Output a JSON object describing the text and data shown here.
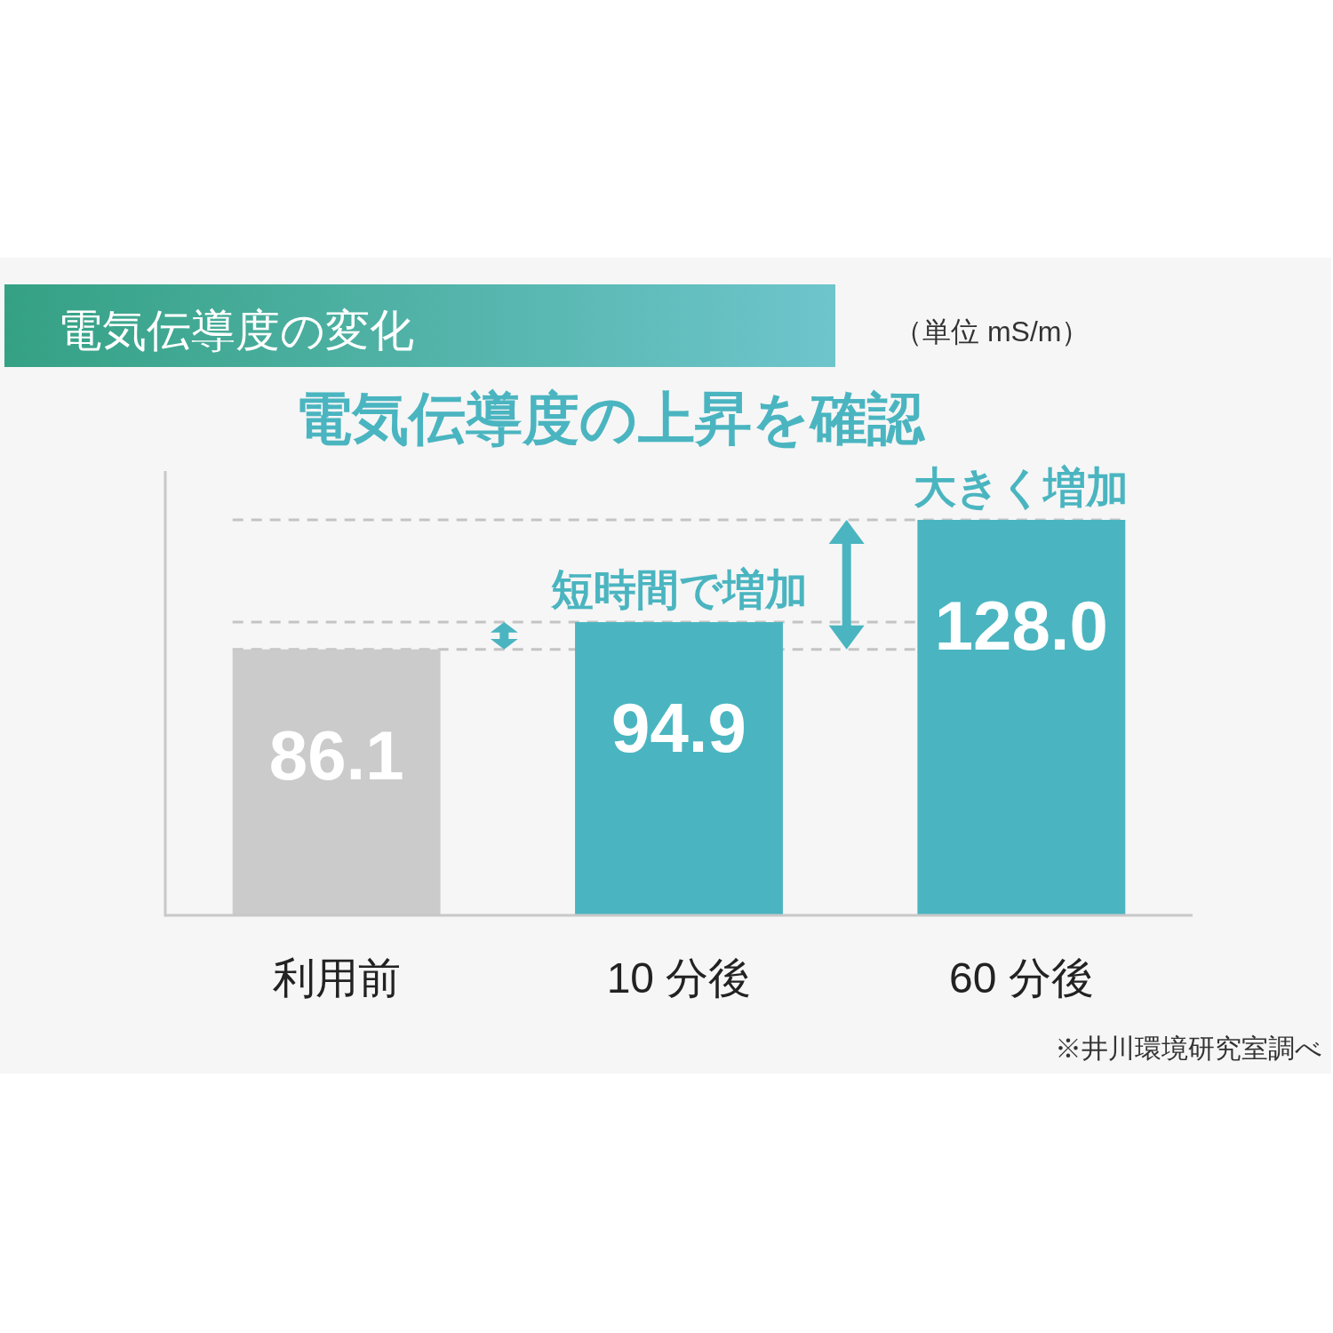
{
  "chart_data": {
    "type": "bar",
    "title": "電気伝導度の変化",
    "subtitle": "電気伝導度の上昇を確認",
    "categories": [
      "利用前",
      "10 分後",
      "60 分後"
    ],
    "values": [
      86.1,
      94.9,
      128.0
    ],
    "value_labels": [
      "86.1",
      "94.9",
      "128.0"
    ],
    "colors": [
      "#cbcbcb",
      "#4ab5c0",
      "#4ab5c0"
    ],
    "tick_labels": "x",
    "ref_lines": [
      {
        "axis": "y",
        "value": 86.1,
        "color": "#c4c4c4",
        "line_style": "dashed"
      },
      {
        "axis": "y",
        "value": 94.9,
        "color": "#c4c4c4",
        "line_style": "dashed"
      },
      {
        "axis": "y",
        "value": 128.0,
        "color": "#c4c4c4",
        "line_style": "dashed"
      }
    ],
    "annotations": [
      "（単位 mS/m）",
      {
        "text": "短時間で増加",
        "x": "10 分後",
        "y": 94.9
      },
      {
        "text": "大きく増加",
        "x": "60 分後",
        "y": 128.0
      },
      "※井川環境研究室調べ"
    ]
  }
}
